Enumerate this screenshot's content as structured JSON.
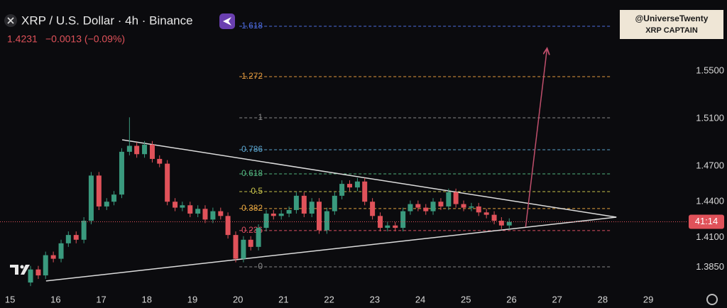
{
  "header": {
    "title": "XRP / U.S. Dollar · 4h · Binance",
    "change": "−0.0013 (−0.09%)"
  },
  "watermark": {
    "line1": "@UniverseTwenty",
    "line2": "XRP CAPTAIN"
  },
  "chart_data": {
    "type": "candlestick",
    "last_price": 1.4231,
    "countdown": "41:14",
    "x": [
      15.45,
      15.62,
      15.78,
      15.95,
      16.12,
      16.28,
      16.45,
      16.62,
      16.78,
      16.95,
      17.12,
      17.28,
      17.45,
      17.62,
      17.78,
      17.95,
      18.12,
      18.28,
      18.45,
      18.62,
      18.78,
      18.95,
      19.12,
      19.28,
      19.45,
      19.62,
      19.78,
      19.95,
      20.12,
      20.28,
      20.45,
      20.62,
      20.78,
      20.95,
      21.12,
      21.28,
      21.45,
      21.62,
      21.78,
      21.95,
      22.12,
      22.28,
      22.45,
      22.62,
      22.78,
      22.95,
      23.12,
      23.28,
      23.45,
      23.62,
      23.78,
      23.95,
      24.12,
      24.28,
      24.45,
      24.62,
      24.78,
      24.95,
      25.12,
      25.28,
      25.45,
      25.62,
      25.78,
      25.95
    ],
    "open": [
      1.372,
      1.383,
      1.378,
      1.395,
      1.392,
      1.405,
      1.412,
      1.408,
      1.424,
      1.462,
      1.436,
      1.44,
      1.446,
      1.482,
      1.487,
      1.48,
      1.488,
      1.476,
      1.472,
      1.44,
      1.435,
      1.437,
      1.43,
      1.434,
      1.425,
      1.432,
      1.428,
      1.412,
      1.392,
      1.408,
      1.402,
      1.418,
      1.43,
      1.428,
      1.43,
      1.433,
      1.445,
      1.43,
      1.44,
      1.416,
      1.432,
      1.445,
      1.455,
      1.452,
      1.457,
      1.44,
      1.428,
      1.418,
      1.42,
      1.418,
      1.432,
      1.438,
      1.435,
      1.432,
      1.44,
      1.436,
      1.448,
      1.438,
      1.435,
      1.436,
      1.431,
      1.429,
      1.424,
      1.42
    ],
    "high": [
      1.386,
      1.386,
      1.398,
      1.398,
      1.408,
      1.415,
      1.415,
      1.427,
      1.465,
      1.465,
      1.443,
      1.449,
      1.485,
      1.511,
      1.49,
      1.491,
      1.491,
      1.479,
      1.475,
      1.443,
      1.44,
      1.44,
      1.437,
      1.437,
      1.435,
      1.435,
      1.431,
      1.415,
      1.411,
      1.411,
      1.421,
      1.433,
      1.433,
      1.433,
      1.436,
      1.448,
      1.448,
      1.443,
      1.443,
      1.435,
      1.448,
      1.458,
      1.458,
      1.46,
      1.46,
      1.443,
      1.431,
      1.423,
      1.423,
      1.435,
      1.441,
      1.441,
      1.438,
      1.443,
      1.443,
      1.451,
      1.451,
      1.441,
      1.439,
      1.439,
      1.434,
      1.432,
      1.427,
      1.426
    ],
    "low": [
      1.369,
      1.375,
      1.375,
      1.389,
      1.389,
      1.402,
      1.405,
      1.405,
      1.421,
      1.433,
      1.433,
      1.437,
      1.443,
      1.479,
      1.477,
      1.477,
      1.473,
      1.469,
      1.437,
      1.432,
      1.432,
      1.427,
      1.427,
      1.422,
      1.422,
      1.425,
      1.409,
      1.389,
      1.389,
      1.399,
      1.399,
      1.415,
      1.425,
      1.425,
      1.427,
      1.43,
      1.427,
      1.427,
      1.413,
      1.413,
      1.429,
      1.442,
      1.449,
      1.449,
      1.437,
      1.425,
      1.415,
      1.415,
      1.415,
      1.415,
      1.429,
      1.432,
      1.429,
      1.429,
      1.433,
      1.433,
      1.435,
      1.432,
      1.432,
      1.428,
      1.426,
      1.421,
      1.417,
      1.417
    ],
    "close": [
      1.383,
      1.378,
      1.395,
      1.392,
      1.405,
      1.412,
      1.408,
      1.424,
      1.462,
      1.436,
      1.44,
      1.446,
      1.482,
      1.487,
      1.48,
      1.488,
      1.476,
      1.472,
      1.44,
      1.435,
      1.437,
      1.43,
      1.434,
      1.425,
      1.432,
      1.428,
      1.412,
      1.392,
      1.408,
      1.402,
      1.418,
      1.43,
      1.428,
      1.43,
      1.433,
      1.445,
      1.43,
      1.44,
      1.416,
      1.432,
      1.445,
      1.455,
      1.452,
      1.457,
      1.44,
      1.428,
      1.418,
      1.42,
      1.418,
      1.432,
      1.438,
      1.435,
      1.432,
      1.44,
      1.436,
      1.448,
      1.438,
      1.435,
      1.436,
      1.431,
      1.429,
      1.424,
      1.42,
      1.4231
    ],
    "up_color": "#3a9a7e",
    "down_color": "#e0525a",
    "xlim": [
      14.78,
      29.73
    ],
    "ylim": [
      1.3649,
      1.6097
    ],
    "xticks": [
      15,
      16,
      17,
      18,
      19,
      20,
      21,
      22,
      23,
      24,
      25,
      26,
      27,
      28,
      29
    ],
    "yticks": [
      {
        "value": 1.55,
        "label": "1.5500"
      },
      {
        "value": 1.51,
        "label": "1.5100"
      },
      {
        "value": 1.47,
        "label": "1.4700"
      },
      {
        "value": 1.44,
        "label": "1.4400"
      },
      {
        "value": 1.41,
        "label": "1.4100"
      },
      {
        "value": 1.385,
        "label": "1.3850"
      }
    ],
    "fib_range": [
      20.03,
      28.2
    ],
    "fib_levels": [
      {
        "ratio": 1.618,
        "price": 1.5876,
        "color": "#4d6ce0"
      },
      {
        "ratio": 1.272,
        "price": 1.5452,
        "color": "#e39a3e"
      },
      {
        "ratio": 1,
        "price": 1.5106,
        "color": "#8a8a8a"
      },
      {
        "ratio": 0.786,
        "price": 1.4837,
        "color": "#5aa3cc"
      },
      {
        "ratio": 0.618,
        "price": 1.4634,
        "color": "#52b47e"
      },
      {
        "ratio": 0.5,
        "price": 1.4485,
        "color": "#c8c34a"
      },
      {
        "ratio": 0.382,
        "price": 1.4342,
        "color": "#e5a540"
      },
      {
        "ratio": 0.236,
        "price": 1.4157,
        "color": "#e04f63"
      },
      {
        "ratio": 0,
        "price": 1.3852,
        "color": "#8a8a8a"
      }
    ],
    "trendlines": [
      {
        "x": [
          17.46,
          28.3
        ],
        "y": [
          1.4921,
          1.427
        ]
      },
      {
        "x": [
          15.79,
          28.3
        ],
        "y": [
          1.3733,
          1.427
        ]
      }
    ],
    "arrow": {
      "x": [
        26.31,
        26.78
      ],
      "y": [
        1.4187,
        1.5691
      ],
      "color": "#c04f6c"
    }
  }
}
